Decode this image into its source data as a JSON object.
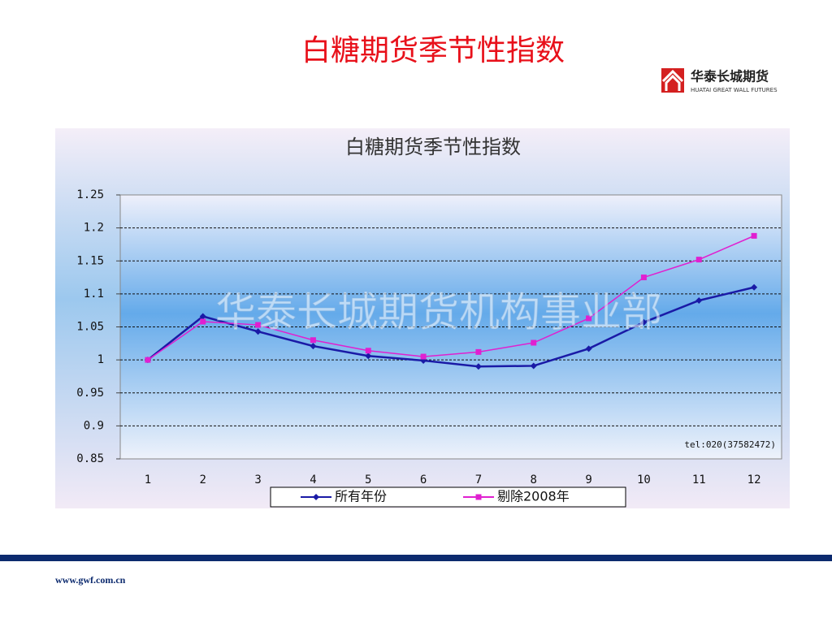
{
  "slide_title": "白糖期货季节性指数",
  "logo": {
    "name": "华泰长城期货",
    "subtitle": "HUATAI GREAT WALL FUTURES"
  },
  "footer_url": "www.gwf.com.cn",
  "chart_data": {
    "type": "line",
    "title": "白糖期货季节性指数",
    "watermark": "华泰长城期货机构事业部",
    "annotation": "tel:020(37582472)",
    "categories": [
      "1",
      "2",
      "3",
      "4",
      "5",
      "6",
      "7",
      "8",
      "9",
      "10",
      "11",
      "12"
    ],
    "series": [
      {
        "name": "所有年份",
        "color": "#1a1aa6",
        "marker": "diamond",
        "values": [
          1.0,
          1.066,
          1.043,
          1.021,
          1.006,
          0.999,
          0.99,
          0.991,
          1.017,
          1.057,
          1.09,
          1.11
        ]
      },
      {
        "name": "剔除2008年",
        "color": "#e020d0",
        "marker": "square",
        "values": [
          1.0,
          1.058,
          1.053,
          1.03,
          1.014,
          1.005,
          1.012,
          1.026,
          1.063,
          1.125,
          1.152,
          1.188
        ]
      }
    ],
    "ylim": [
      0.85,
      1.25
    ],
    "yticks": [
      0.85,
      0.9,
      0.95,
      1,
      1.05,
      1.1,
      1.15,
      1.2,
      1.25
    ],
    "grid": true,
    "legend": "bottom"
  }
}
